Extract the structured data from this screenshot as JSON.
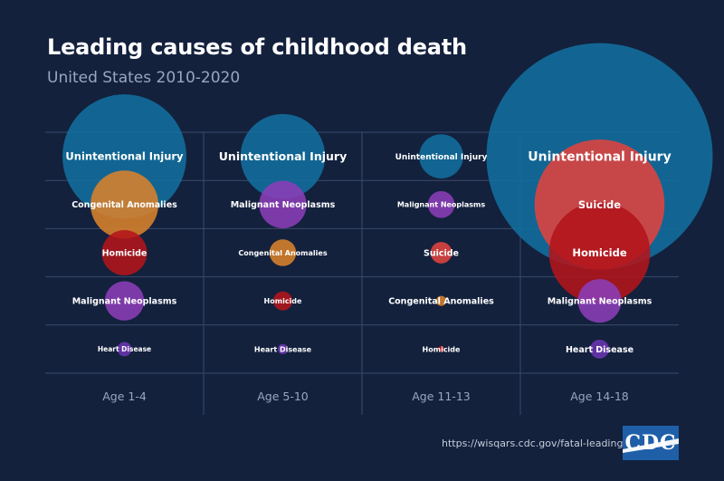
{
  "chart_data": {
    "type": "bubble",
    "title": "Leading causes of childhood death",
    "subtitle": "United States 2010-2020",
    "age_groups": [
      "Age 1-4",
      "Age 5-10",
      "Age 11-13",
      "Age 14-18"
    ],
    "rank_count": 5,
    "grid": true,
    "categories": {
      "Unintentional Injury": "#126e9e",
      "Suicide": "#e0433f",
      "Homicide": "#b3151b",
      "Malignant Neoplasms": "#8b3db8",
      "Congenital Anomalies": "#d9822b",
      "Heart Disease": "#6a34b0"
    },
    "cells": [
      {
        "group": 0,
        "rank": 1,
        "cause": "Unintentional Injury",
        "relative_size": 0.3
      },
      {
        "group": 0,
        "rank": 2,
        "cause": "Congenital Anomalies",
        "relative_size": 0.09
      },
      {
        "group": 0,
        "rank": 3,
        "cause": "Homicide",
        "relative_size": 0.04
      },
      {
        "group": 0,
        "rank": 4,
        "cause": "Malignant Neoplasms",
        "relative_size": 0.03
      },
      {
        "group": 0,
        "rank": 5,
        "cause": "Heart Disease",
        "relative_size": 0.004
      },
      {
        "group": 1,
        "rank": 1,
        "cause": "Unintentional Injury",
        "relative_size": 0.14
      },
      {
        "group": 1,
        "rank": 2,
        "cause": "Malignant Neoplasms",
        "relative_size": 0.044
      },
      {
        "group": 1,
        "rank": 3,
        "cause": "Congenital Anomalies",
        "relative_size": 0.014
      },
      {
        "group": 1,
        "rank": 4,
        "cause": "Homicide",
        "relative_size": 0.007
      },
      {
        "group": 1,
        "rank": 5,
        "cause": "Heart Disease",
        "relative_size": 0.002
      },
      {
        "group": 2,
        "rank": 1,
        "cause": "Unintentional Injury",
        "relative_size": 0.038
      },
      {
        "group": 2,
        "rank": 2,
        "cause": "Malignant Neoplasms",
        "relative_size": 0.014
      },
      {
        "group": 2,
        "rank": 3,
        "cause": "Suicide",
        "relative_size": 0.009
      },
      {
        "group": 2,
        "rank": 4,
        "cause": "Congenital Anomalies",
        "relative_size": 0.002
      },
      {
        "group": 2,
        "rank": 5,
        "cause": "Homicide",
        "relative_size": 0.0008
      },
      {
        "group": 3,
        "rank": 1,
        "cause": "Unintentional Injury",
        "relative_size": 1.0
      },
      {
        "group": 3,
        "rank": 2,
        "cause": "Suicide",
        "relative_size": 0.33
      },
      {
        "group": 3,
        "rank": 3,
        "cause": "Homicide",
        "relative_size": 0.2
      },
      {
        "group": 3,
        "rank": 4,
        "cause": "Malignant Neoplasms",
        "relative_size": 0.037
      },
      {
        "group": 3,
        "rank": 5,
        "cause": "Heart Disease",
        "relative_size": 0.007
      }
    ]
  },
  "footer": {
    "source_url": "https://wisqars.cdc.gov/fatal-leading",
    "logo_text": "CDC"
  }
}
